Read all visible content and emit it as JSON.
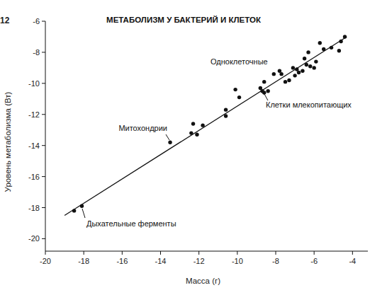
{
  "chart_data": {
    "type": "scatter",
    "figure_label": "12",
    "title": "МЕТАБОЛИЗМ У БАКТЕРИЙ И КЛЕТОК",
    "x_label": "Масса (г)",
    "y_label": "Уровень метаболизма (Вт)",
    "annotations": [
      "Одноклеточные",
      "Клетки млекопитающих",
      "Митохондрии",
      "Дыхательные ферменты"
    ],
    "xlim": [
      -20,
      -3.2
    ],
    "xticks": [
      -20,
      -18,
      -16,
      -14,
      -12,
      -10,
      -8,
      -6,
      -4
    ],
    "ylim": [
      -20.8,
      -6
    ],
    "yticks": [
      -20,
      -18,
      -16,
      -14,
      -12,
      -10,
      -8,
      -6
    ],
    "grid": false,
    "series": [
      {
        "type": "scatter",
        "marker": "circle",
        "color": "#111111",
        "x": [
          -18.5,
          -18.1,
          -13.5,
          -12.4,
          -12.3,
          -12.1,
          -11.8,
          -10.6,
          -10.6,
          -10.1,
          -9.9,
          -8.8,
          -8.7,
          -8.6,
          -8.6,
          -8.4,
          -8.1,
          -7.8,
          -7.7,
          -7.5,
          -7.3,
          -7.1,
          -7.0,
          -6.9,
          -6.8,
          -6.6,
          -6.5,
          -6.4,
          -6.3,
          -6.2,
          -6.0,
          -5.9,
          -5.7,
          -5.5,
          -5.1,
          -4.7,
          -4.6,
          -4.4
        ],
        "values": [
          -18.2,
          -17.9,
          -13.8,
          -13.2,
          -12.6,
          -13.3,
          -12.7,
          -12.1,
          -11.7,
          -10.4,
          -10.9,
          -10.3,
          -10.5,
          -9.9,
          -10.6,
          -10.5,
          -9.4,
          -9.2,
          -9.4,
          -9.9,
          -9.8,
          -9.0,
          -9.5,
          -9.1,
          -9.3,
          -9.2,
          -8.4,
          -8.8,
          -8.0,
          -8.9,
          -9.0,
          -8.6,
          -7.4,
          -7.8,
          -7.7,
          -7.9,
          -7.3,
          -7.0
        ]
      },
      {
        "type": "line",
        "line_style": "solid",
        "color": "#111111",
        "x": [
          -19.0,
          -4.3
        ],
        "values": [
          -18.5,
          -7.0
        ]
      }
    ]
  }
}
